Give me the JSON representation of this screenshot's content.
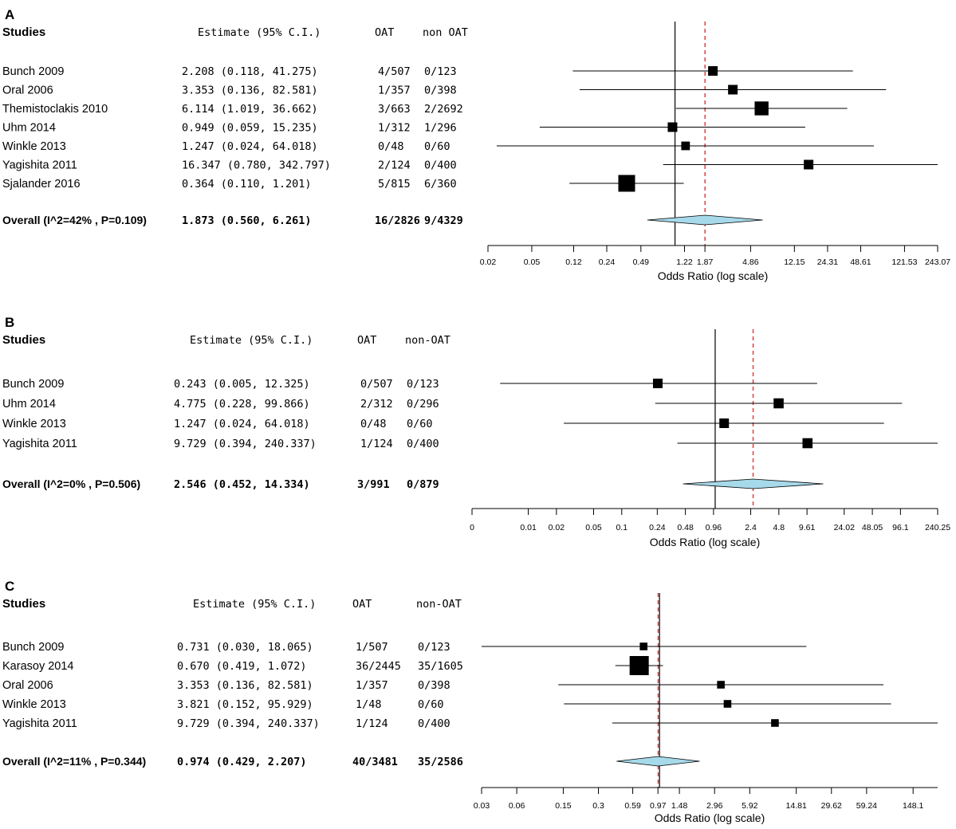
{
  "chart_data": [
    {
      "type": "forest",
      "panel_label": "A",
      "columns": {
        "studies": "Studies",
        "estimate": "Estimate (95% C.I.)",
        "oat": "OAT",
        "nonoat": "non OAT"
      },
      "studies": [
        {
          "name": "Bunch 2009",
          "est_text": "2.208",
          "lo_text": "0.118",
          "hi_text": "41.275",
          "oat": "4/507",
          "nonoat": "0/123",
          "est": 2.208,
          "lo": 0.118,
          "hi": 41.275,
          "weight": 1.0
        },
        {
          "name": "Oral 2006",
          "est_text": "3.353",
          "lo_text": "0.136",
          "hi_text": "82.581",
          "oat": "1/357",
          "nonoat": "0/398",
          "est": 3.353,
          "lo": 0.136,
          "hi": 82.581,
          "weight": 1.0
        },
        {
          "name": "Themistoclakis 2010",
          "est_text": "6.114",
          "lo_text": "1.019",
          "hi_text": "36.662",
          "oat": "3/663",
          "nonoat": "2/2692",
          "est": 6.114,
          "lo": 1.019,
          "hi": 36.662,
          "weight": 1.45
        },
        {
          "name": "Uhm 2014",
          "est_text": "0.949",
          "lo_text": "0.059",
          "hi_text": "15.235",
          "oat": "1/312",
          "nonoat": "1/296",
          "est": 0.949,
          "lo": 0.059,
          "hi": 15.235,
          "weight": 1.0
        },
        {
          "name": "Winkle 2013",
          "est_text": "1.247",
          "lo_text": "0.024",
          "hi_text": "64.018",
          "oat": "0/48",
          "nonoat": "0/60",
          "est": 1.247,
          "lo": 0.024,
          "hi": 64.018,
          "weight": 0.9
        },
        {
          "name": "Yagishita 2011",
          "est_text": "16.347",
          "lo_text": "0.780",
          "hi_text": "342.797",
          "oat": "2/124",
          "nonoat": "0/400",
          "est": 16.347,
          "lo": 0.78,
          "hi": 342.797,
          "weight": 1.0
        },
        {
          "name": "Sjalander 2016",
          "est_text": "0.364",
          "lo_text": "0.110",
          "hi_text": "1.201",
          "oat": "5/815",
          "nonoat": "6/360",
          "est": 0.364,
          "lo": 0.11,
          "hi": 1.201,
          "weight": 1.75
        }
      ],
      "overall": {
        "label": "Overall (I^2=42% , P=0.109)",
        "est_text": "1.873",
        "lo_text": "0.560",
        "hi_text": "6.261",
        "oat": "16/2826",
        "nonoat": "9/4329",
        "est": 1.873,
        "lo": 0.56,
        "hi": 6.261
      },
      "null_value": 1.0,
      "ticks": [
        0.02,
        0.05,
        0.12,
        0.24,
        0.49,
        1.22,
        1.87,
        4.86,
        12.15,
        24.31,
        48.61,
        121.53,
        243.07
      ],
      "tick_labels": [
        "0.02",
        "0.05",
        "0.12",
        "0.24",
        "0.49",
        "1.22",
        "1.87",
        "4.86",
        "12.15",
        "24.31",
        "48.61",
        "121.53",
        "243.07"
      ],
      "xlim": [
        0.02,
        243.07
      ],
      "xlabel": "Odds Ratio (log scale)"
    },
    {
      "type": "forest",
      "panel_label": "B",
      "columns": {
        "studies": "Studies",
        "estimate": "Estimate (95% C.I.)",
        "oat": "OAT",
        "nonoat": "non-OAT"
      },
      "studies": [
        {
          "name": "Bunch  2009",
          "est_text": "0.243",
          "lo_text": "0.005",
          "hi_text": "12.325",
          "oat": "0/507",
          "nonoat": "0/123",
          "est": 0.243,
          "lo": 0.005,
          "hi": 12.325,
          "weight": 1.0
        },
        {
          "name": "Uhm 2014",
          "est_text": "4.775",
          "lo_text": "0.228",
          "hi_text": "99.866",
          "oat": "2/312",
          "nonoat": "0/296",
          "est": 4.775,
          "lo": 0.228,
          "hi": 99.866,
          "weight": 1.05
        },
        {
          "name": "Winkle 2013",
          "est_text": "1.247",
          "lo_text": "0.024",
          "hi_text": "64.018",
          "oat": "0/48",
          "nonoat": "0/60",
          "est": 1.247,
          "lo": 0.024,
          "hi": 64.018,
          "weight": 1.0
        },
        {
          "name": "Yagishita 2011",
          "est_text": "9.729",
          "lo_text": "0.394",
          "hi_text": "240.337",
          "oat": "1/124",
          "nonoat": "0/400",
          "est": 9.729,
          "lo": 0.394,
          "hi": 240.337,
          "weight": 1.05
        }
      ],
      "overall": {
        "label": "Overall (I^2=0% , P=0.506)",
        "est_text": "2.546",
        "lo_text": "0.452",
        "hi_text": "14.334",
        "oat": "3/991",
        "nonoat": "0/879",
        "est": 2.546,
        "lo": 0.452,
        "hi": 14.334
      },
      "null_value": 1.0,
      "ticks": [
        0.0025,
        0.01,
        0.02,
        0.05,
        0.1,
        0.24,
        0.48,
        0.96,
        2.4,
        4.8,
        9.61,
        24.02,
        48.05,
        96.1,
        240.25
      ],
      "tick_labels": [
        "0",
        "0.01",
        "0.02",
        "0.05",
        "0.1",
        "0.24",
        "0.48",
        "0.96",
        "2.4",
        "4.8",
        "9.61",
        "24.02",
        "48.05",
        "96.1",
        "240.25"
      ],
      "xlim": [
        0.0025,
        240.25
      ],
      "xlabel": "Odds Ratio (log scale)"
    },
    {
      "type": "forest",
      "panel_label": "C",
      "columns": {
        "studies": "Studies",
        "estimate": "Estimate (95% C.I.)",
        "oat": "OAT",
        "nonoat": "non-OAT"
      },
      "studies": [
        {
          "name": "Bunch  2009",
          "est_text": "0.731",
          "lo_text": "0.030",
          "hi_text": "18.065",
          "oat": "1/507",
          "nonoat": "0/123",
          "est": 0.731,
          "lo": 0.03,
          "hi": 18.065,
          "weight": 0.8
        },
        {
          "name": "Karasoy 2014",
          "est_text": "0.670",
          "lo_text": "0.419",
          "hi_text": "1.072",
          "oat": "36/2445",
          "nonoat": "35/1605",
          "est": 0.67,
          "lo": 0.419,
          "hi": 1.072,
          "weight": 2.0
        },
        {
          "name": "Oral 2006",
          "est_text": "3.353",
          "lo_text": "0.136",
          "hi_text": "82.581",
          "oat": "1/357",
          "nonoat": "0/398",
          "est": 3.353,
          "lo": 0.136,
          "hi": 82.581,
          "weight": 0.8
        },
        {
          "name": "Winkle 2013",
          "est_text": "3.821",
          "lo_text": "0.152",
          "hi_text": "95.929",
          "oat": "1/48",
          "nonoat": "0/60",
          "est": 3.821,
          "lo": 0.152,
          "hi": 95.929,
          "weight": 0.8
        },
        {
          "name": "Yagishita 2011",
          "est_text": "9.729",
          "lo_text": "0.394",
          "hi_text": "240.337",
          "oat": "1/124",
          "nonoat": "0/400",
          "est": 9.729,
          "lo": 0.394,
          "hi": 240.337,
          "weight": 0.8
        }
      ],
      "overall": {
        "label": "Overall (I^2=11% , P=0.344)",
        "est_text": "0.974",
        "lo_text": "0.429",
        "hi_text": "2.207",
        "oat": "40/3481",
        "nonoat": "35/2586",
        "est": 0.974,
        "lo": 0.429,
        "hi": 2.207
      },
      "null_value": 1.0,
      "ticks": [
        0.03,
        0.06,
        0.15,
        0.3,
        0.59,
        0.97,
        1.48,
        2.96,
        5.92,
        14.81,
        29.62,
        59.24,
        148.1
      ],
      "tick_labels": [
        "0.03",
        "0.06",
        "0.15",
        "0.3",
        "0.59",
        "0.97",
        "1.48",
        "2.96",
        "5.92",
        "14.81",
        "29.62",
        "59.24",
        "148.1"
      ],
      "xlim": [
        0.03,
        240.337
      ],
      "xlabel": "Odds Ratio (log scale)"
    }
  ],
  "colors": {
    "ink": "#000000",
    "diamond_fill": "#a6d9ea",
    "summary_line": "#d23b3b",
    "axis": "#000000"
  }
}
